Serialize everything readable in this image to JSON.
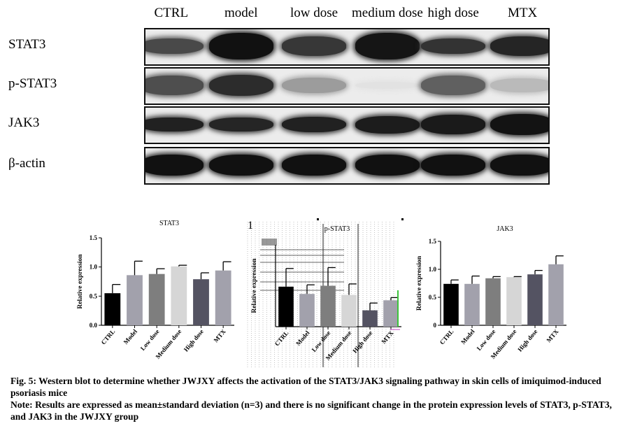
{
  "blot": {
    "headers": [
      "CTRL",
      "model",
      "low dose",
      "medium dose",
      "high dose",
      "MTX"
    ],
    "rows": [
      {
        "label": "STAT3",
        "intensity": [
          0.72,
          0.97,
          0.8,
          0.95,
          0.82,
          0.88
        ],
        "thickness": [
          0.45,
          0.75,
          0.55,
          0.75,
          0.45,
          0.55
        ]
      },
      {
        "label": "p-STAT3",
        "intensity": [
          0.7,
          0.85,
          0.35,
          0.04,
          0.62,
          0.22
        ],
        "thickness": [
          0.55,
          0.6,
          0.45,
          0.2,
          0.55,
          0.4
        ]
      },
      {
        "label": "JAK3",
        "intensity": [
          0.9,
          0.88,
          0.9,
          0.92,
          0.93,
          0.96
        ],
        "thickness": [
          0.4,
          0.4,
          0.45,
          0.5,
          0.55,
          0.6
        ]
      },
      {
        "label": "β-actin",
        "intensity": [
          0.97,
          0.97,
          0.97,
          0.97,
          0.97,
          0.97
        ],
        "thickness": [
          0.6,
          0.6,
          0.6,
          0.6,
          0.6,
          0.6
        ]
      }
    ]
  },
  "chart_data": [
    {
      "type": "bar",
      "title": "STAT3",
      "ylabel": "Relative expression",
      "xlabel": "",
      "categories": [
        "CTRL",
        "Model",
        "Low dose",
        "Medium dose",
        "High dose",
        "MTX"
      ],
      "values": [
        0.55,
        0.86,
        0.88,
        1.01,
        0.79,
        0.94
      ],
      "errors": [
        0.15,
        0.24,
        0.09,
        0.02,
        0.11,
        0.15
      ],
      "ylim": [
        0,
        1.5
      ],
      "yticks": [
        "0.0",
        "0.5",
        "1.0",
        "1.5"
      ],
      "colors": [
        "#000000",
        "#a2a1ac",
        "#7e7e7e",
        "#d6d6d6",
        "#545362",
        "#a2a1ac"
      ]
    },
    {
      "type": "bar",
      "title": "p-STAT3",
      "ylabel": "Relative expression",
      "xlabel": "",
      "categories": [
        "CTRL",
        "Model",
        "Low dose",
        "Medium dose",
        "High dose",
        "MTX"
      ],
      "values": [
        0.44,
        0.36,
        0.45,
        0.35,
        0.18,
        0.29
      ],
      "errors": [
        0.2,
        0.1,
        0.2,
        0.12,
        0.08,
        0.03
      ],
      "ylim": [
        0,
        0.9
      ],
      "colors": [
        "#000000",
        "#a2a1ac",
        "#7e7e7e",
        "#d6d6d6",
        "#545362",
        "#a2a1ac"
      ]
    },
    {
      "type": "bar",
      "title": "JAK3",
      "ylabel": "Relative expression",
      "xlabel": "",
      "categories": [
        "CTRL",
        "Model",
        "Low dose",
        "Medium dose",
        "High dose",
        "MTX"
      ],
      "values": [
        0.74,
        0.74,
        0.84,
        0.86,
        0.91,
        1.09
      ],
      "errors": [
        0.07,
        0.14,
        0.03,
        0.01,
        0.07,
        0.15
      ],
      "ylim": [
        0,
        1.5
      ],
      "yticks": [
        "0",
        "0.5",
        "1.0",
        "1.5"
      ],
      "colors": [
        "#000000",
        "#a2a1ac",
        "#7e7e7e",
        "#d6d6d6",
        "#545362",
        "#a2a1ac"
      ]
    }
  ],
  "panel_letter": "1",
  "caption": {
    "line1": "Fig. 5: Western blot to determine whether JWJXY affects the activation of the STAT3/JAK3 signaling pathway in skin cells of imiquimod-induced psoriasis mice",
    "line2": "Note: Results are expressed as mean±standard deviation (n=3) and there is no significant change in the protein expression levels of STAT3, p-STAT3, and JAK3 in the JWJXY group"
  }
}
